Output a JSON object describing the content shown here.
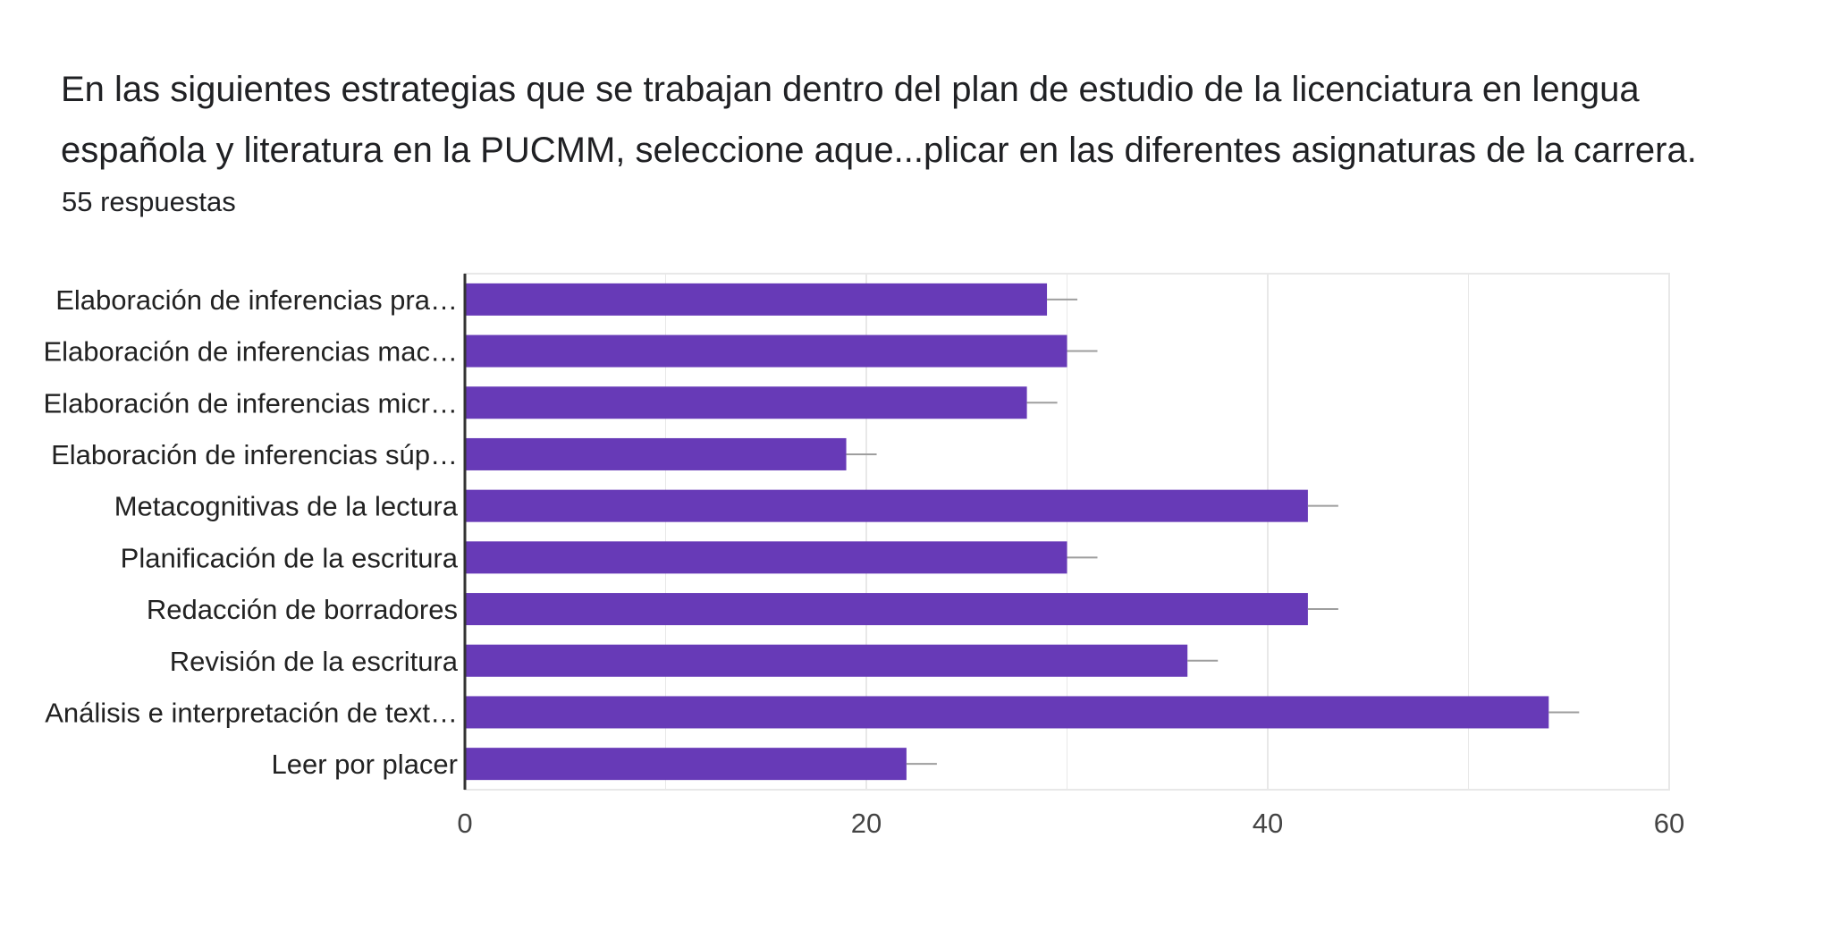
{
  "question": {
    "title_line1": "En las siguientes estrategias que se trabajan dentro del plan de estudio de la licenciatura en lengua",
    "title_line2": "española y literatura en la PUCMM, seleccione  aque...plicar en las diferentes asignaturas de la carrera.",
    "responses": "55 respuestas"
  },
  "colors": {
    "bar": "#673ab7",
    "error_bar": "#9e9e9e",
    "grid": "#e8e8e8",
    "axis": "#333333"
  },
  "chart_data": {
    "type": "bar",
    "orientation": "horizontal",
    "categories": [
      "Elaboración de inferencias pra…",
      "Elaboración de inferencias mac…",
      "Elaboración de inferencias micr…",
      "Elaboración de inferencias súp…",
      "Metacognitivas de la lectura",
      "Planificación de la escritura",
      "Redacción de borradores",
      "Revisión de la escritura",
      "Análisis e interpretación de text…",
      "Leer por placer"
    ],
    "values": [
      29,
      30,
      28,
      19,
      42,
      30,
      42,
      36,
      54,
      22
    ],
    "error_bars": true,
    "xlim": [
      0,
      60
    ],
    "xticks": [
      0,
      20,
      40,
      60
    ],
    "grid": true,
    "legend": "none"
  }
}
